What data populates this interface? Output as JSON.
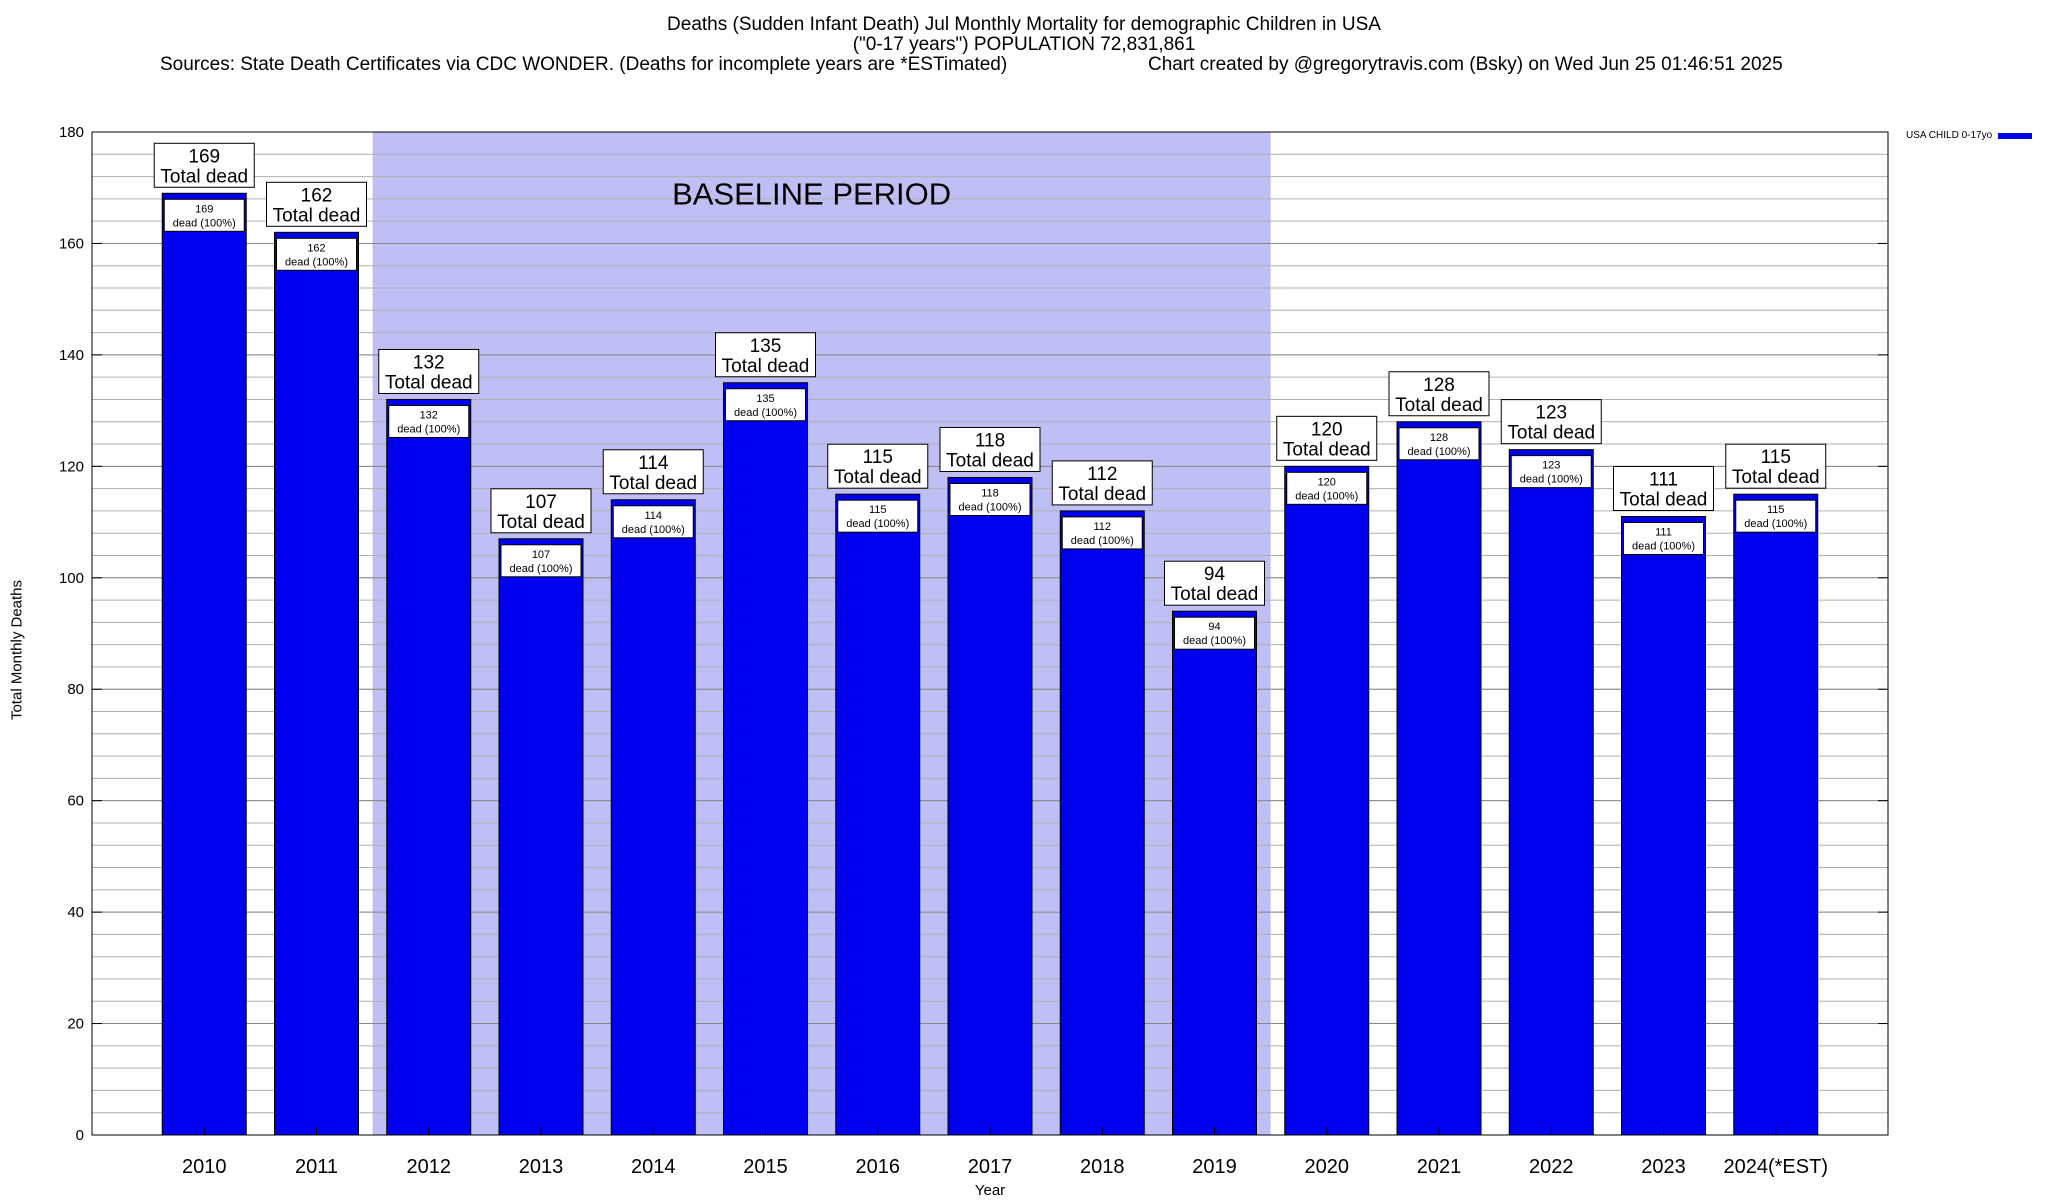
{
  "header": {
    "title_line1": "Deaths (Sudden Infant Death) Jul Monthly Mortality for demographic Children in USA",
    "title_line2": "(\"0-17 years\") POPULATION 72,831,861",
    "source": "Sources: State Death Certificates via CDC WONDER. (Deaths for incomplete years are *ESTimated)",
    "credit": "Chart created by @gregorytravis.com (Bsky) on Wed Jun 25 01:46:51 2025"
  },
  "chart_data": {
    "type": "bar",
    "categories": [
      "2010",
      "2011",
      "2012",
      "2013",
      "2014",
      "2015",
      "2016",
      "2017",
      "2018",
      "2019",
      "2020",
      "2021",
      "2022",
      "2023",
      "2024(*EST)"
    ],
    "series": [
      {
        "name": "USA CHILD 0-17yo",
        "values": [
          169,
          162,
          132,
          107,
          114,
          135,
          115,
          118,
          112,
          94,
          120,
          128,
          123,
          111,
          115
        ]
      }
    ],
    "bar_label_suffix": "Total dead",
    "inner_label_suffix": "dead (100%)",
    "xlabel": "Year",
    "ylabel": "Total Monthly Deaths",
    "ylim": [
      0,
      180
    ],
    "y_major_step": 20,
    "y_minor_step": 4,
    "baseline": {
      "label": "BASELINE PERIOD",
      "from_category": "2012",
      "to_category": "2019"
    },
    "legend_position": "top-right",
    "grid": true,
    "colors": {
      "bar": "#0000ee",
      "baseline_shade": "#bfbff5",
      "grid": "#b0b0b0"
    }
  }
}
